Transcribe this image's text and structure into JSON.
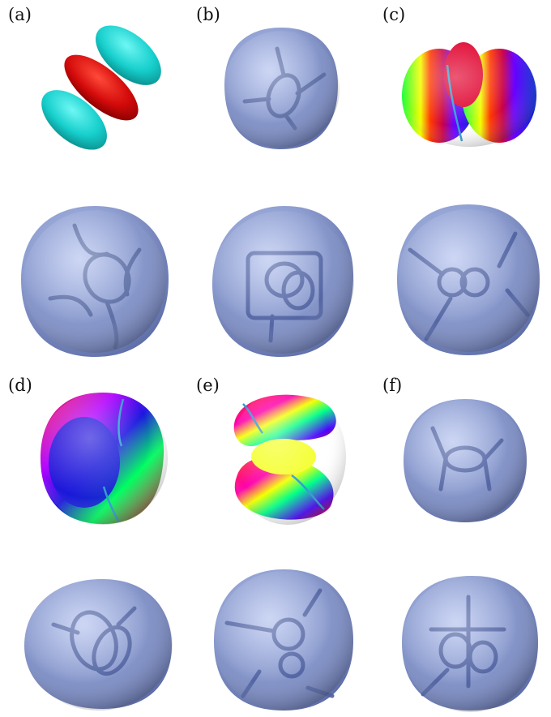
{
  "figure": {
    "panels": [
      {
        "label": "(a)"
      },
      {
        "label": "(b)"
      },
      {
        "label": "(c)"
      },
      {
        "label": "(d)"
      },
      {
        "label": "(e)"
      },
      {
        "label": "(f)"
      }
    ]
  },
  "colors": {
    "surface_blue": "#8f9fcf",
    "surface_blue_dark": "#4a5b96",
    "vortex_line": "#5066a8",
    "cyan": "#19d6d3",
    "red": "#d80b0b"
  }
}
